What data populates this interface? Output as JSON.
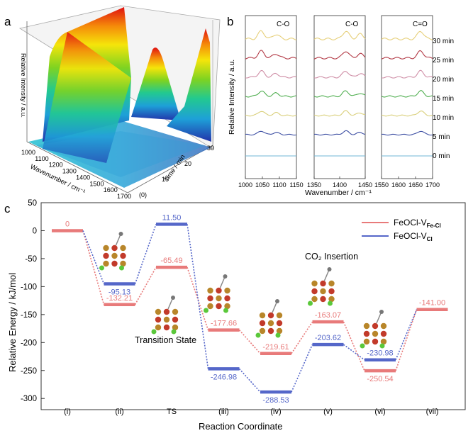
{
  "panel_labels": {
    "a": "a",
    "b": "b",
    "c": "c"
  },
  "panel_a": {
    "type": "3d-surface",
    "zlabel": "Relative Intensity / a.u.",
    "xlabel": "Wavenumber / cm⁻¹",
    "ylabel": "Time / min",
    "x_ticks": [
      "1000",
      "1100",
      "1200",
      "1300",
      "1400",
      "1500",
      "1600",
      "1700"
    ],
    "y_ticks": [
      "(0)",
      "10",
      "20",
      "30"
    ]
  },
  "panel_b": {
    "type": "line",
    "ylabel": "Relative Intensity / a.u.",
    "xlabel": "Wavenumber / cm⁻¹",
    "series_labels": [
      "0 min",
      "5 min",
      "10 min",
      "15 min",
      "20 min",
      "25 min",
      "30 min"
    ],
    "series_colors": [
      "#6fb6d6",
      "#3d4fa3",
      "#d9cf7a",
      "#4fae4f",
      "#cf8ea6",
      "#b33a46",
      "#e6cf78"
    ],
    "subplots": [
      {
        "title": "C-O",
        "x_ticks": [
          "1000",
          "1050",
          "1100",
          "1150"
        ],
        "xlim": [
          1000,
          1150
        ],
        "peaks": [
          1047,
          1090
        ]
      },
      {
        "title": "C-O",
        "x_ticks": [
          "1350",
          "1400",
          "1450"
        ],
        "xlim": [
          1350,
          1450
        ],
        "peaks": [
          1412,
          1440
        ]
      },
      {
        "title": "C=O",
        "x_ticks": [
          "1550",
          "1600",
          "1650",
          "1700"
        ],
        "xlim": [
          1550,
          1700
        ],
        "peaks": [
          1665
        ]
      }
    ]
  },
  "chart_data": {
    "type": "line",
    "title": "",
    "xlabel": "Reaction Coordinate",
    "ylabel": "Relative Energy / kJ/mol",
    "ylim": [
      -320,
      50
    ],
    "y_ticks": [
      50,
      0,
      -50,
      -100,
      -150,
      -200,
      -250,
      -300
    ],
    "categories": [
      "(i)",
      "(ii)",
      "TS",
      "(iii)",
      "(iv)",
      "(v)",
      "(vi)",
      "(vii)"
    ],
    "series": [
      {
        "name_main": "FeOCl-V",
        "name_sub": "Fe-Cl",
        "color": "#e87a7a",
        "values": [
          0,
          -132.21,
          -65.49,
          -177.66,
          -219.61,
          -163.07,
          -250.54,
          -141.0
        ],
        "labels": [
          "0",
          "-132.21",
          "-65.49",
          "-177.66",
          "-219.61",
          "-163.07",
          "-250.54",
          "-141.00"
        ]
      },
      {
        "name_main": "FeOCl-V",
        "name_sub": "Cl",
        "color": "#5567c9",
        "values": [
          null,
          -95.13,
          11.5,
          -246.98,
          -288.53,
          -203.62,
          -230.98,
          null
        ],
        "labels": [
          "",
          "-95.13",
          "11.50",
          "-246.98",
          "-288.53",
          "-203.62",
          "-230.98",
          ""
        ]
      }
    ],
    "annotations": [
      "Transition State",
      "CO₂ Insertion"
    ],
    "legend_position": "top-right"
  }
}
